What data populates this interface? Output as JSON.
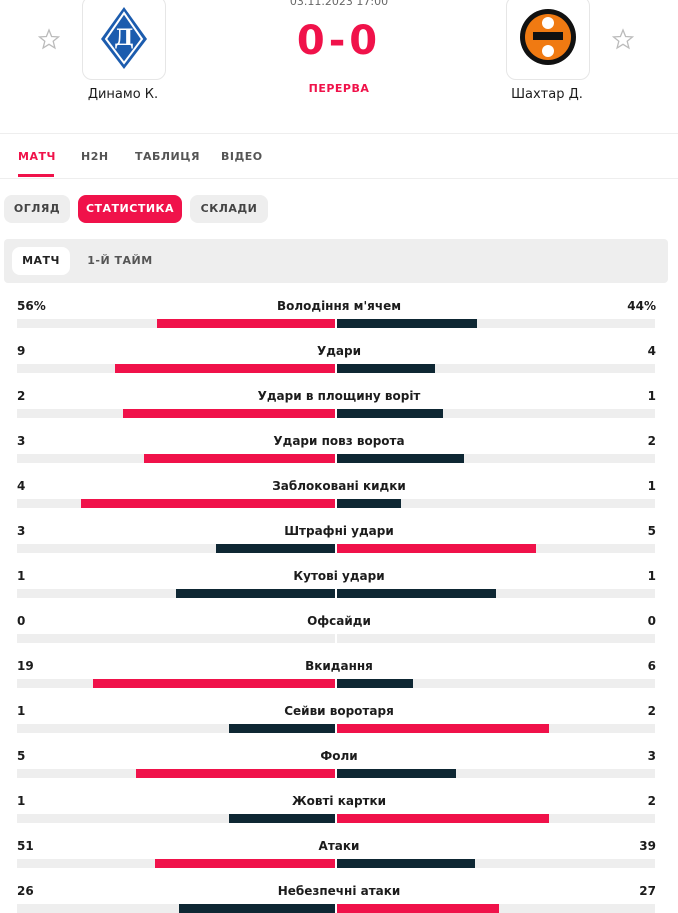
{
  "header": {
    "date": "03.11.2023 17:00",
    "home": "Динамо К.",
    "away": "Шахтар Д.",
    "score_home": "0",
    "score_sep": "-",
    "score_away": "0",
    "status": "ПЕРЕРВА"
  },
  "tabs": [
    "МАТЧ",
    "H2H",
    "ТАБЛИЦЯ",
    "ВІДЕО"
  ],
  "subtabs": [
    "ОГЛЯД",
    "СТАТИСТИКА",
    "СКЛАДИ"
  ],
  "periods": [
    "МАТЧ",
    "1-Й ТАЙМ"
  ],
  "stats": [
    {
      "name": "Володіння м'ячем",
      "home": 56,
      "away": 44,
      "home_label": "56%",
      "away_label": "44%"
    },
    {
      "name": "Удари",
      "home": 9,
      "away": 4
    },
    {
      "name": "Удари в площину воріт",
      "home": 2,
      "away": 1
    },
    {
      "name": "Удари повз ворота",
      "home": 3,
      "away": 2
    },
    {
      "name": "Заблоковані кидки",
      "home": 4,
      "away": 1
    },
    {
      "name": "Штрафні удари",
      "home": 3,
      "away": 5
    },
    {
      "name": "Кутові удари",
      "home": 1,
      "away": 1
    },
    {
      "name": "Офсайди",
      "home": 0,
      "away": 0
    },
    {
      "name": "Вкидання",
      "home": 19,
      "away": 6
    },
    {
      "name": "Сейви воротаря",
      "home": 1,
      "away": 2
    },
    {
      "name": "Фоли",
      "home": 5,
      "away": 3
    },
    {
      "name": "Жовті картки",
      "home": 1,
      "away": 2
    },
    {
      "name": "Атаки",
      "home": 51,
      "away": 39
    },
    {
      "name": "Небезпечні атаки",
      "home": 26,
      "away": 27
    }
  ]
}
